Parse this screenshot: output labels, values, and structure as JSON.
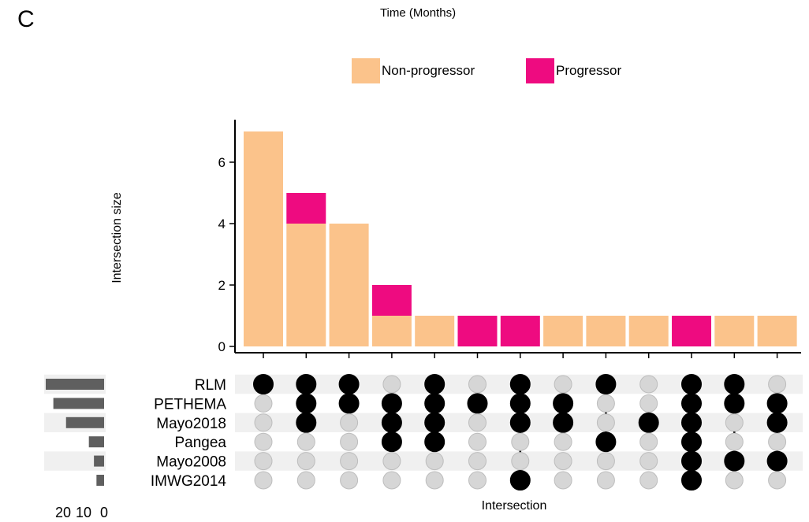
{
  "panel_label": "C",
  "chart_data": {
    "type": "bar",
    "title": "Time (Months)",
    "xlabel": "Intersection",
    "ylabel": "Intersection size",
    "ylim": [
      0,
      7.2
    ],
    "yticks": [
      0,
      2,
      4,
      6
    ],
    "legend": {
      "placement": "top",
      "entries": [
        {
          "label": "Non-progressor",
          "color": "#FBC38B"
        },
        {
          "label": "Progressor",
          "color": "#EE0B80"
        }
      ]
    },
    "series": [
      {
        "name": "Non-progressor",
        "color": "#FBC38B",
        "values": [
          7,
          4,
          4,
          1,
          1,
          0,
          0,
          1,
          1,
          1,
          0,
          1,
          1
        ]
      },
      {
        "name": "Progressor",
        "color": "#EE0B80",
        "values": [
          0,
          1,
          0,
          1,
          0,
          1,
          1,
          0,
          0,
          0,
          1,
          0,
          0
        ]
      }
    ],
    "sets": [
      "RLM",
      "PETHEMA",
      "Mayo2018",
      "Pangea",
      "Mayo2008",
      "IMWG2014"
    ],
    "set_sizes": [
      23,
      20,
      15,
      6,
      4,
      3
    ],
    "set_size_ticks": [
      "20",
      "10",
      "0"
    ],
    "set_size_xlim": [
      0,
      23
    ],
    "intersections": [
      [
        "RLM"
      ],
      [
        "RLM",
        "PETHEMA",
        "Mayo2018"
      ],
      [
        "RLM",
        "PETHEMA"
      ],
      [
        "PETHEMA",
        "Mayo2018",
        "Pangea"
      ],
      [
        "RLM",
        "PETHEMA",
        "Mayo2018",
        "Pangea"
      ],
      [
        "PETHEMA"
      ],
      [
        "RLM",
        "PETHEMA",
        "Mayo2018",
        "IMWG2014"
      ],
      [
        "PETHEMA",
        "Mayo2018"
      ],
      [
        "RLM",
        "Pangea"
      ],
      [
        "Mayo2018"
      ],
      [
        "RLM",
        "PETHEMA",
        "Mayo2018",
        "Pangea",
        "Mayo2008",
        "IMWG2014"
      ],
      [
        "RLM",
        "PETHEMA",
        "Mayo2008"
      ],
      [
        "PETHEMA",
        "Mayo2018",
        "Mayo2008"
      ]
    ],
    "colors": {
      "active_dot": "#000000",
      "inactive_dot": "#D6D6D6",
      "stripe": "#F0F0F0",
      "set_size_bar": "#5F5F5F"
    }
  }
}
